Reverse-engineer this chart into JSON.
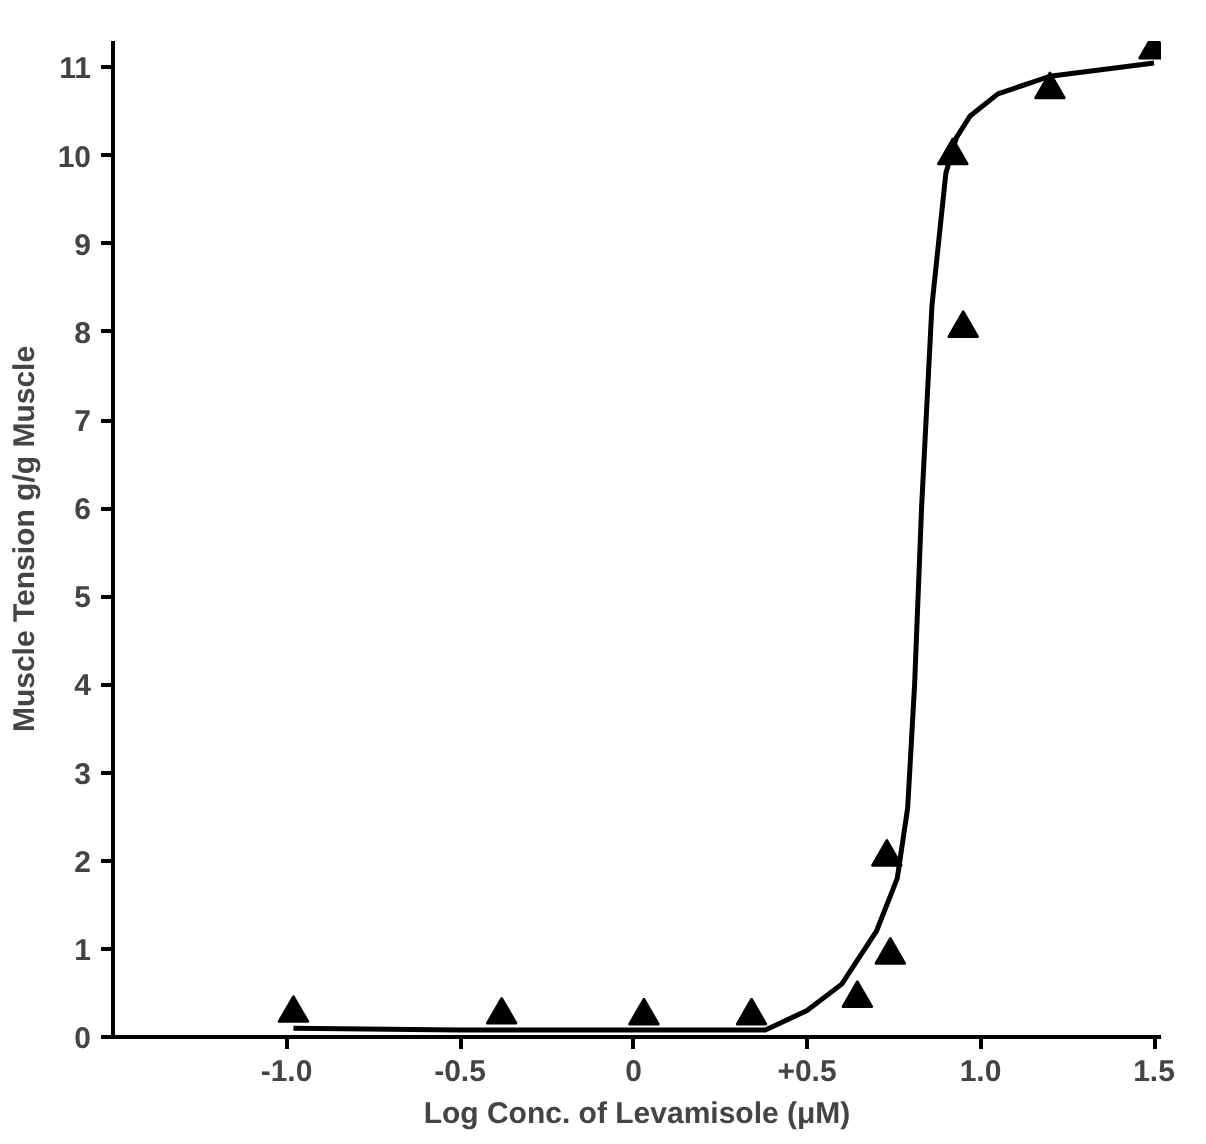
{
  "chart_data": {
    "type": "scatter",
    "xlabel": "Log Conc. of Levamisole (μM)",
    "ylabel": "Muscle Tension g/g Muscle",
    "xlim": [
      -1.5,
      1.52
    ],
    "ylim": [
      0,
      11.3
    ],
    "xticks": [
      {
        "value": -1.0,
        "label": "-1.0"
      },
      {
        "value": -0.5,
        "label": "-0.5"
      },
      {
        "value": 0,
        "label": "0"
      },
      {
        "value": 0.5,
        "label": "+0.5"
      },
      {
        "value": 1.0,
        "label": "1.0"
      },
      {
        "value": 1.5,
        "label": "1.5"
      }
    ],
    "yticks": [
      0,
      1,
      2,
      3,
      4,
      5,
      6,
      7,
      8,
      9,
      10,
      11
    ],
    "grid": false,
    "series": [
      {
        "marker": "triangle",
        "color": "#000000",
        "x": [
          -0.98,
          -0.38,
          0.03,
          0.34,
          0.645,
          0.74,
          0.73,
          0.95,
          0.92,
          1.2,
          1.5
        ],
        "values": [
          0.27,
          0.25,
          0.24,
          0.24,
          0.44,
          0.93,
          2.04,
          8.04,
          10.0,
          10.75,
          11.2
        ]
      },
      {
        "type": "line",
        "color": "#000000",
        "line_style": "solid",
        "x": [
          -0.98,
          -0.5,
          0.0,
          0.38,
          0.5,
          0.6,
          0.7,
          0.76,
          0.79,
          0.81,
          0.83,
          0.86,
          0.9,
          0.93,
          0.97,
          1.05,
          1.2,
          1.5
        ],
        "values": [
          0.1,
          0.08,
          0.08,
          0.08,
          0.3,
          0.6,
          1.2,
          1.8,
          2.6,
          4.0,
          6.0,
          8.3,
          9.8,
          10.2,
          10.45,
          10.7,
          10.9,
          11.05
        ]
      }
    ]
  }
}
